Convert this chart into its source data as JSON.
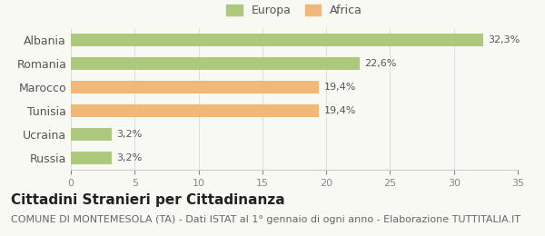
{
  "categories": [
    "Albania",
    "Romania",
    "Marocco",
    "Tunisia",
    "Ucraina",
    "Russia"
  ],
  "values": [
    32.3,
    22.6,
    19.4,
    19.4,
    3.2,
    3.2
  ],
  "labels": [
    "32,3%",
    "22,6%",
    "19,4%",
    "19,4%",
    "3,2%",
    "3,2%"
  ],
  "colors": [
    "#adc97e",
    "#adc97e",
    "#f0b97a",
    "#f0b97a",
    "#adc97e",
    "#adc97e"
  ],
  "legend_items": [
    {
      "label": "Europa",
      "color": "#adc97e"
    },
    {
      "label": "Africa",
      "color": "#f0b97a"
    }
  ],
  "xlim": [
    0,
    35
  ],
  "xticks": [
    0,
    5,
    10,
    15,
    20,
    25,
    30,
    35
  ],
  "title": "Cittadini Stranieri per Cittadinanza",
  "subtitle": "COMUNE DI MONTEMESOLA (TA) - Dati ISTAT al 1° gennaio di ogni anno - Elaborazione TUTTITALIA.IT",
  "background_color": "#f9f9f4",
  "bar_height": 0.55,
  "title_fontsize": 11,
  "subtitle_fontsize": 8,
  "label_fontsize": 8,
  "tick_fontsize": 8,
  "ytick_fontsize": 9
}
